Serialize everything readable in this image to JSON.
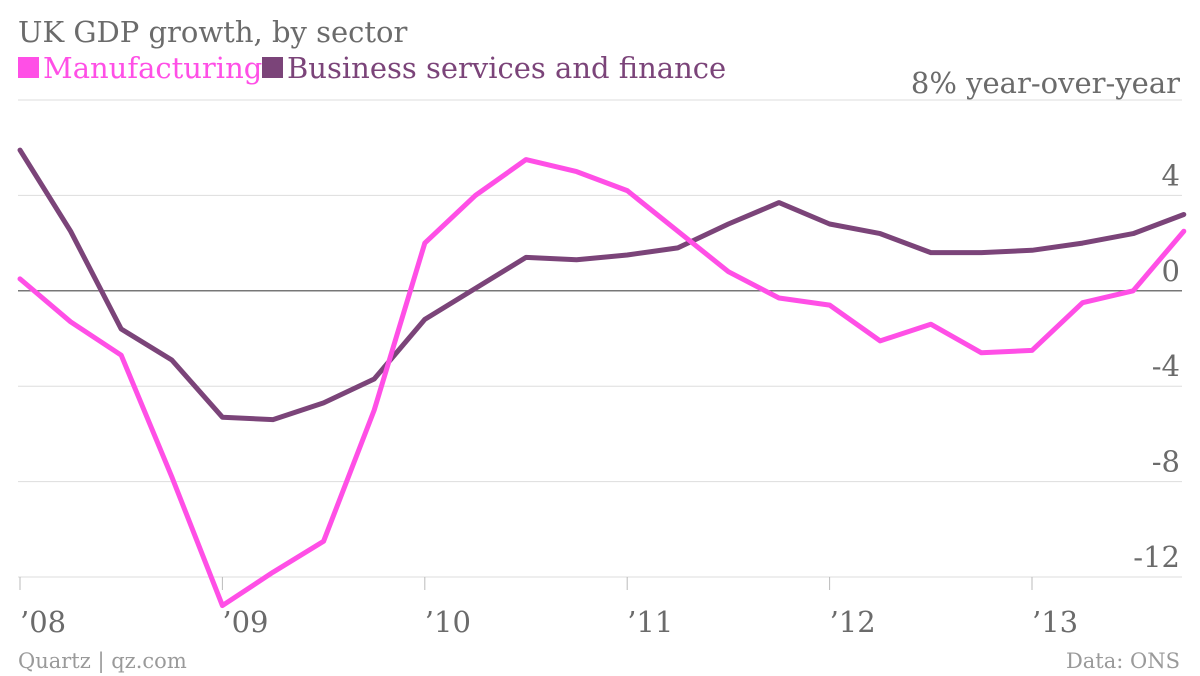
{
  "header": {
    "title": "UK GDP growth, by sector"
  },
  "footer": {
    "credit": "Quartz | qz.com",
    "source": "Data: ONS"
  },
  "colors": {
    "manufacturing": "#ff4fe6",
    "business": "#7b4479",
    "grid": "#dddddd",
    "zero": "#777777",
    "text": "#6b6b6b"
  },
  "chart_data": {
    "type": "line",
    "title": "UK GDP growth, by sector",
    "unit_label": "8% year-over-year",
    "xlabel": "",
    "ylabel": "",
    "ylim": [
      -13.5,
      8
    ],
    "xlim": [
      "2008-Q1",
      "2013-Q3"
    ],
    "grid": true,
    "legend": "top-left",
    "y_ticks": [
      8,
      4,
      0,
      -4,
      -8,
      -12
    ],
    "y_tick_labels": [
      "",
      "4",
      "0",
      "-4",
      "-8",
      "-12"
    ],
    "x_ticks": [
      "2008-Q1",
      "2009-Q1",
      "2010-Q1",
      "2011-Q1",
      "2012-Q1",
      "2013-Q1"
    ],
    "x_tick_labels": [
      "’08",
      "’09",
      "’10",
      "’11",
      "’12",
      "’13"
    ],
    "x": [
      "2008-Q1",
      "2008-Q2",
      "2008-Q3",
      "2008-Q4",
      "2009-Q1",
      "2009-Q2",
      "2009-Q3",
      "2009-Q4",
      "2010-Q1",
      "2010-Q2",
      "2010-Q3",
      "2010-Q4",
      "2011-Q1",
      "2011-Q2",
      "2011-Q3",
      "2011-Q4",
      "2012-Q1",
      "2012-Q2",
      "2012-Q3",
      "2012-Q4",
      "2013-Q1",
      "2013-Q2",
      "2013-Q3",
      "2013-Q4"
    ],
    "series": [
      {
        "name": "Manufacturing",
        "color": "#ff4fe6",
        "values": [
          0.5,
          -1.3,
          -2.7,
          -7.8,
          -13.2,
          -11.8,
          -10.5,
          -5.0,
          2.0,
          4.0,
          5.5,
          5.0,
          4.2,
          2.5,
          0.8,
          -0.3,
          -0.6,
          -2.1,
          -1.4,
          -2.6,
          -2.5,
          -0.5,
          0.0,
          2.5
        ]
      },
      {
        "name": "Business services and finance",
        "color": "#7b4479",
        "values": [
          5.9,
          2.5,
          -1.6,
          -2.9,
          -5.3,
          -5.4,
          -4.7,
          -3.7,
          -1.2,
          0.1,
          1.4,
          1.3,
          1.5,
          1.8,
          2.8,
          3.7,
          2.8,
          2.4,
          1.6,
          1.6,
          1.7,
          2.0,
          2.4,
          3.2
        ]
      }
    ]
  }
}
